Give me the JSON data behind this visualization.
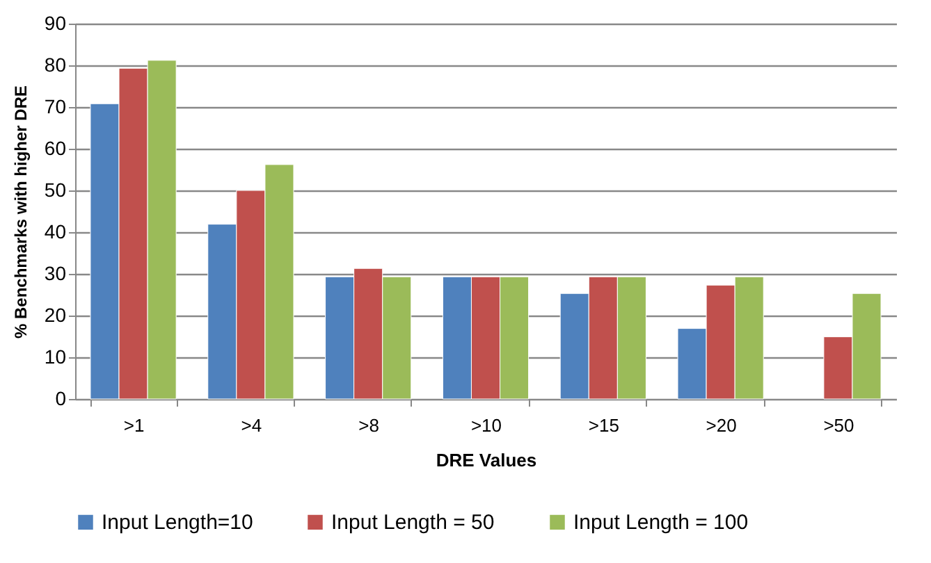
{
  "chart_data": {
    "type": "bar",
    "xlabel": "DRE Values",
    "ylabel": "% Benchmarks with higher DRE",
    "categories": [
      ">1",
      ">4",
      ">8",
      ">10",
      ">15",
      ">20",
      ">50"
    ],
    "series": [
      {
        "name": "Input Length=10",
        "color": "#4f81bd",
        "values": [
          70.8,
          41.9,
          29.3,
          29.3,
          25.3,
          16.9,
          null
        ]
      },
      {
        "name": "Input Length = 50",
        "color": "#c0504d",
        "values": [
          79.3,
          50,
          31.3,
          29.3,
          29.3,
          27.3,
          14.9
        ]
      },
      {
        "name": "Input Length = 100",
        "color": "#9bbb59",
        "values": [
          81.2,
          56.2,
          29.3,
          29.3,
          29.3,
          29.3,
          25.3
        ]
      }
    ],
    "ylim": [
      0,
      90
    ],
    "yticks": [
      0,
      10,
      20,
      30,
      40,
      50,
      60,
      70,
      80,
      90
    ],
    "grid": "y",
    "legend": "bottom"
  }
}
